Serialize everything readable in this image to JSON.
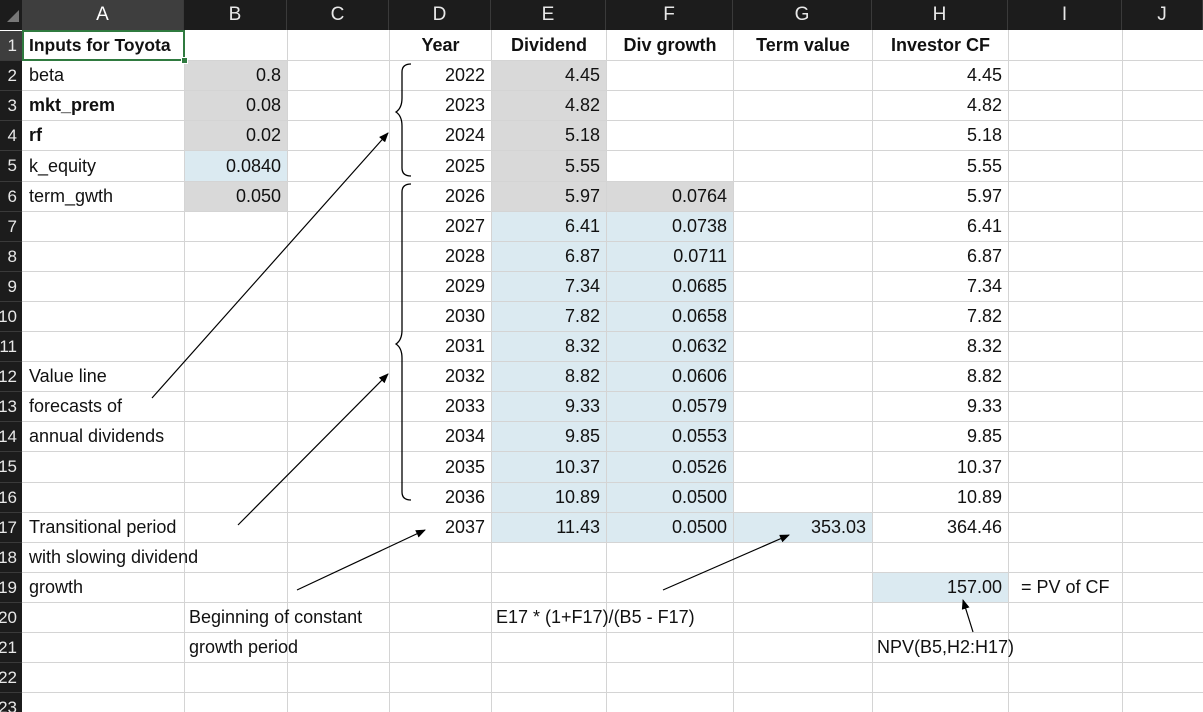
{
  "columns": [
    "A",
    "B",
    "C",
    "D",
    "E",
    "F",
    "G",
    "H",
    "I",
    "J"
  ],
  "rows": [
    "1",
    "2",
    "3",
    "4",
    "5",
    "6",
    "7",
    "8",
    "9",
    "10",
    "11",
    "12",
    "13",
    "14",
    "15",
    "16",
    "17",
    "18",
    "19",
    "20",
    "21",
    "22",
    "23"
  ],
  "inputs": {
    "title": "Inputs for Toyota",
    "items": [
      {
        "label": "beta",
        "value": "0.8",
        "bold": false
      },
      {
        "label": "mkt_prem",
        "value": "0.08",
        "bold": true
      },
      {
        "label": "rf",
        "value": "0.02",
        "bold": true
      },
      {
        "label": "k_equity",
        "value": "0.0840",
        "bold": false
      },
      {
        "label": "term_gwth",
        "value": "0.050",
        "bold": false
      }
    ]
  },
  "table": {
    "headers": {
      "year": "Year",
      "dividend": "Dividend",
      "div_growth": "Div growth",
      "term_value": "Term value",
      "investor_cf": "Investor CF"
    },
    "rows": [
      {
        "year": "2022",
        "dividend": "4.45",
        "growth": "",
        "term": "",
        "cf": "4.45"
      },
      {
        "year": "2023",
        "dividend": "4.82",
        "growth": "",
        "term": "",
        "cf": "4.82"
      },
      {
        "year": "2024",
        "dividend": "5.18",
        "growth": "",
        "term": "",
        "cf": "5.18"
      },
      {
        "year": "2025",
        "dividend": "5.55",
        "growth": "",
        "term": "",
        "cf": "5.55"
      },
      {
        "year": "2026",
        "dividend": "5.97",
        "growth": "0.0764",
        "term": "",
        "cf": "5.97"
      },
      {
        "year": "2027",
        "dividend": "6.41",
        "growth": "0.0738",
        "term": "",
        "cf": "6.41"
      },
      {
        "year": "2028",
        "dividend": "6.87",
        "growth": "0.0711",
        "term": "",
        "cf": "6.87"
      },
      {
        "year": "2029",
        "dividend": "7.34",
        "growth": "0.0685",
        "term": "",
        "cf": "7.34"
      },
      {
        "year": "2030",
        "dividend": "7.82",
        "growth": "0.0658",
        "term": "",
        "cf": "7.82"
      },
      {
        "year": "2031",
        "dividend": "8.32",
        "growth": "0.0632",
        "term": "",
        "cf": "8.32"
      },
      {
        "year": "2032",
        "dividend": "8.82",
        "growth": "0.0606",
        "term": "",
        "cf": "8.82"
      },
      {
        "year": "2033",
        "dividend": "9.33",
        "growth": "0.0579",
        "term": "",
        "cf": "9.33"
      },
      {
        "year": "2034",
        "dividend": "9.85",
        "growth": "0.0553",
        "term": "",
        "cf": "9.85"
      },
      {
        "year": "2035",
        "dividend": "10.37",
        "growth": "0.0526",
        "term": "",
        "cf": "10.37"
      },
      {
        "year": "2036",
        "dividend": "10.89",
        "growth": "0.0500",
        "term": "",
        "cf": "10.89"
      },
      {
        "year": "2037",
        "dividend": "11.43",
        "growth": "0.0500",
        "term": "353.03",
        "cf": "364.46"
      }
    ]
  },
  "pv": {
    "value": "157.00",
    "label": "= PV of CF",
    "formula": "NPV(B5,H2:H17)"
  },
  "term_formula": "E17 * (1+F17)/(B5 - F17)",
  "annotations": {
    "value_line": [
      "Value line",
      "forecasts of",
      "annual dividends"
    ],
    "transitional": [
      "Transitional period",
      "with slowing dividend",
      "growth"
    ],
    "constant_growth": [
      "Beginning of constant",
      "growth period"
    ]
  }
}
